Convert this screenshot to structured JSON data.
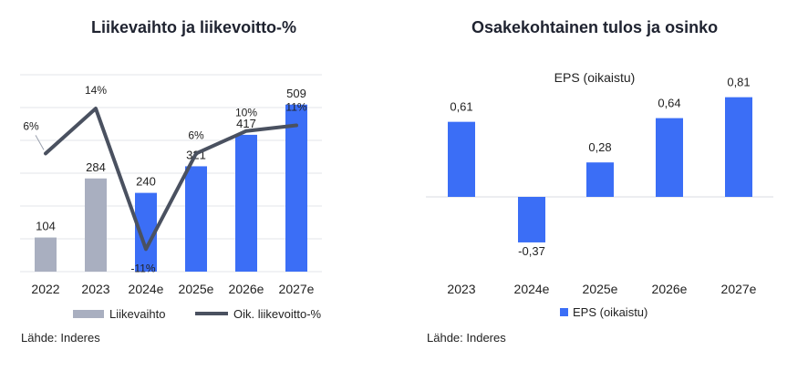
{
  "left": {
    "title": "Liikevaihto ja liikevoitto-%",
    "source": "Lähde: Inderes",
    "chart_data": {
      "type": "bar",
      "categories": [
        "2022",
        "2023",
        "2024e",
        "2025e",
        "2026e",
        "2027e"
      ],
      "series": [
        {
          "name": "Liikevaihto",
          "kind": "bar",
          "axis": "left",
          "values": [
            104,
            284,
            240,
            321,
            417,
            509
          ],
          "labels": [
            "104",
            "284",
            "240",
            "321",
            "417",
            "509"
          ],
          "colors": [
            "#a9afc0",
            "#a9afc0",
            "#3b6ef6",
            "#3b6ef6",
            "#3b6ef6",
            "#3b6ef6"
          ]
        },
        {
          "name": "Oik. liikevoitto-%",
          "kind": "line",
          "axis": "right",
          "values": [
            6,
            14,
            -11,
            6,
            10,
            11
          ],
          "labels": [
            "6%",
            "14%",
            "-11%",
            "6%",
            "10%",
            "11%"
          ],
          "color": "#4a5160"
        }
      ],
      "ylim_left": [
        0,
        600
      ],
      "ylim_right": [
        -15,
        20
      ],
      "grid": true,
      "legend": "bottom"
    }
  },
  "right": {
    "title": "Osakekohtainen tulos ja osinko",
    "source": "Lähde: Inderes",
    "chart_data": {
      "type": "bar",
      "subtitle": "EPS (oikaistu)",
      "categories": [
        "2023",
        "2024e",
        "2025e",
        "2026e",
        "2027e"
      ],
      "series": [
        {
          "name": "EPS (oikaistu)",
          "values": [
            0.61,
            -0.37,
            0.28,
            0.64,
            0.81
          ],
          "labels": [
            "0,61",
            "-0,37",
            "0,28",
            "0,64",
            "0,81"
          ],
          "color": "#3b6ef6"
        }
      ],
      "ylim": [
        -0.55,
        0.85
      ],
      "grid": false,
      "legend": "bottom"
    }
  }
}
